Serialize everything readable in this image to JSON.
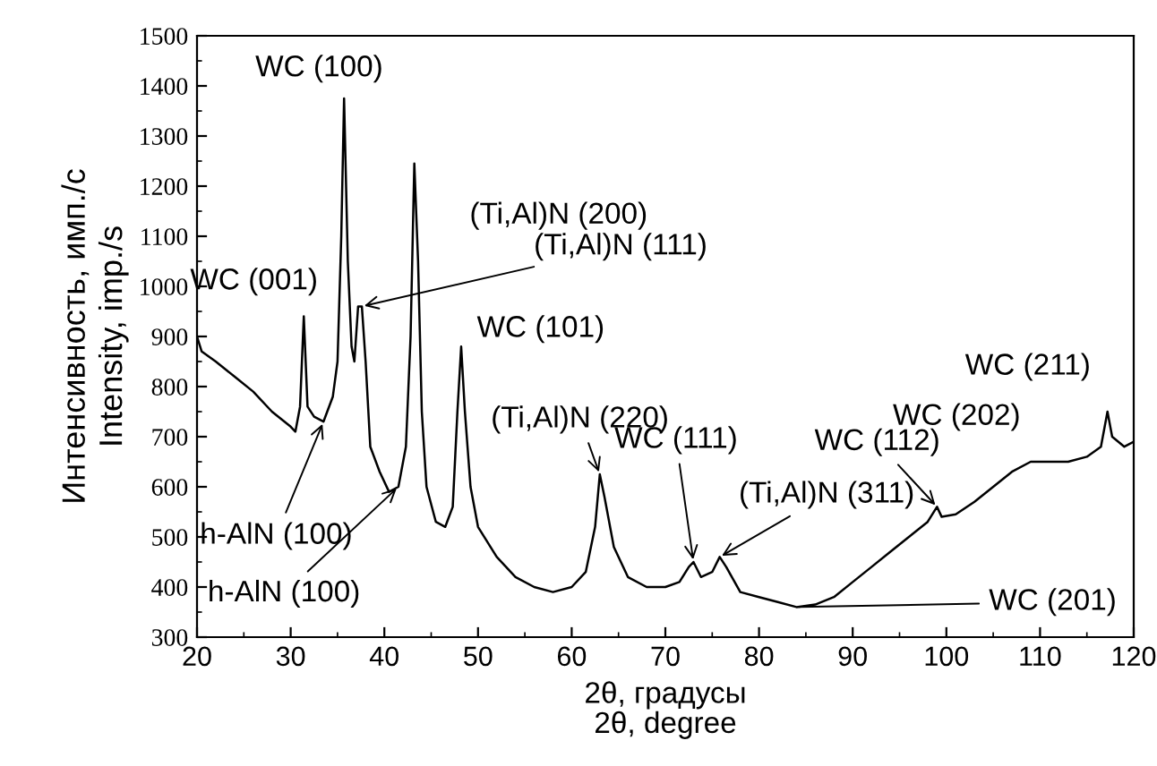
{
  "chart_data": {
    "type": "line",
    "xlabel": "2θ, градусы\n2θ, degree",
    "ylabel": "Интенсивность, имп./с\nIntensity, imp./s",
    "xlim": [
      20,
      120
    ],
    "ylim": [
      300,
      1500
    ],
    "xticks": [
      20,
      30,
      40,
      50,
      60,
      70,
      80,
      90,
      100,
      110,
      120
    ],
    "yticks": [
      300,
      400,
      500,
      600,
      700,
      800,
      900,
      1000,
      1100,
      1200,
      1300,
      1400,
      1500
    ],
    "grid": false,
    "legend": false,
    "marker": "none",
    "line_style": "solid",
    "series": [
      {
        "color": "#000000",
        "x": [
          20,
          20.5,
          22,
          24,
          26,
          28,
          30,
          30.5,
          31,
          31.4,
          31.8,
          32.5,
          33.5,
          34.5,
          35,
          35.4,
          35.7,
          36.1,
          36.5,
          36.8,
          37.2,
          37.6,
          38,
          38.5,
          39.5,
          40.5,
          41.5,
          42.3,
          42.8,
          43.2,
          43.6,
          44,
          44.5,
          45.5,
          46.5,
          47.3,
          47.8,
          48.2,
          48.6,
          49.2,
          50,
          52,
          54,
          56,
          58,
          60,
          61.5,
          62.5,
          63,
          63.5,
          64.5,
          66,
          68,
          70,
          71.5,
          72.5,
          73,
          73.8,
          75,
          75.8,
          76.5,
          78,
          80,
          82,
          84,
          86,
          88,
          90,
          92,
          94,
          96,
          98,
          99,
          99.5,
          101,
          103,
          105,
          107,
          109,
          111,
          113,
          115,
          116.5,
          117.2,
          117.7,
          119,
          120
        ],
        "values": [
          900,
          870,
          850,
          820,
          790,
          750,
          720,
          710,
          760,
          940,
          760,
          740,
          730,
          780,
          850,
          1100,
          1375,
          1050,
          880,
          850,
          960,
          960,
          850,
          680,
          630,
          590,
          600,
          680,
          900,
          1245,
          1050,
          750,
          600,
          530,
          520,
          560,
          750,
          880,
          750,
          600,
          520,
          460,
          420,
          400,
          390,
          400,
          430,
          520,
          625,
          580,
          480,
          420,
          400,
          400,
          410,
          440,
          450,
          420,
          430,
          460,
          440,
          390,
          380,
          370,
          360,
          365,
          380,
          410,
          440,
          470,
          500,
          530,
          560,
          540,
          545,
          570,
          600,
          630,
          650,
          650,
          650,
          660,
          680,
          750,
          700,
          680,
          690
        ]
      }
    ],
    "annotations": [
      {
        "text": "WC (100)",
        "x": 35.7,
        "y": 1375
      },
      {
        "text": "(Ti,Al)N (200)",
        "x": 43.2,
        "y": 1245
      },
      {
        "text": "(Ti,Al)N (111)",
        "x": 37.6,
        "y": 960
      },
      {
        "text": "WC (101)",
        "x": 48.2,
        "y": 880
      },
      {
        "text": "WC (001)",
        "x": 31.4,
        "y": 940
      },
      {
        "text": "h-AlN (100)",
        "x": 33.5,
        "y": 730
      },
      {
        "text": "h-AlN (100)",
        "x": 41.5,
        "y": 600
      },
      {
        "text": "(Ti,Al)N (220)",
        "x": 63,
        "y": 625
      },
      {
        "text": "WC (111)",
        "x": 73,
        "y": 450
      },
      {
        "text": "(Ti,Al)N (311)",
        "x": 75.8,
        "y": 460
      },
      {
        "text": "WC (201)",
        "x": 84,
        "y": 360
      },
      {
        "text": "WC (112)",
        "x": 99,
        "y": 560
      },
      "WC (202)",
      {
        "text": "WC (211)",
        "x": 117.2,
        "y": 750
      }
    ]
  }
}
